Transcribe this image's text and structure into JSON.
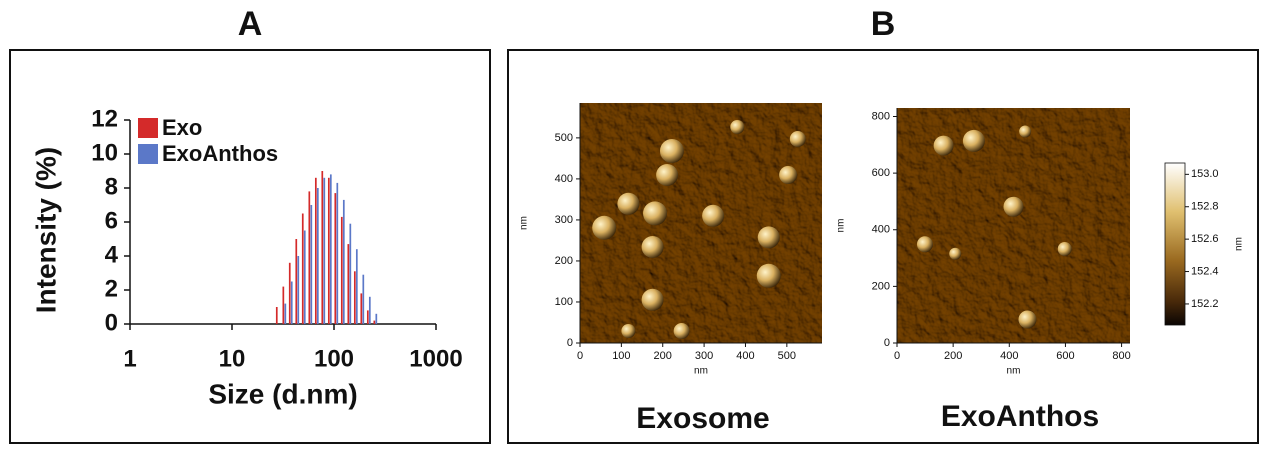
{
  "panels": [
    "A",
    "B"
  ],
  "chart_data": [
    {
      "type": "bar",
      "log_x": true,
      "x": [
        28.2,
        32.7,
        37.8,
        43.8,
        50.7,
        58.8,
        68.1,
        78.8,
        91.3,
        105.7,
        122.4,
        141.8,
        164.2,
        190.1,
        220.2,
        255.0
      ],
      "series": [
        {
          "name": "Exo",
          "color": "#d42a2a",
          "values": [
            1.0,
            2.2,
            3.6,
            5.0,
            6.5,
            7.8,
            8.6,
            9.0,
            8.6,
            7.7,
            6.3,
            4.7,
            3.1,
            1.8,
            0.8,
            0.2
          ]
        },
        {
          "name": "ExoAnthos",
          "color": "#5b78c8",
          "values": [
            0,
            1.2,
            2.5,
            4.0,
            5.5,
            7.0,
            8.0,
            8.6,
            8.8,
            8.3,
            7.3,
            5.9,
            4.4,
            2.9,
            1.6,
            0.6
          ]
        }
      ],
      "xlim": [
        1,
        1000
      ],
      "xticks": [
        1,
        10,
        100,
        1000
      ],
      "ylim": [
        0,
        12
      ],
      "yticks": [
        0,
        2,
        4,
        6,
        8,
        10,
        12
      ],
      "xlabel": "Size (d.nm)",
      "ylabel": "Intensity (%)",
      "legend": "top-left"
    },
    {
      "type": "image",
      "caption": "Exosome",
      "xlabel": "nm",
      "ylabel": "nm",
      "xlim": [
        0,
        585
      ],
      "xticks": [
        0,
        100,
        200,
        300,
        400,
        500
      ],
      "ylim": [
        0,
        585
      ],
      "yticks": [
        0,
        100,
        200,
        300,
        400,
        500
      ]
    },
    {
      "type": "image",
      "caption": "ExoAnthos",
      "xlabel": "nm",
      "ylabel": "nm",
      "xlim": [
        0,
        830
      ],
      "xticks": [
        0,
        200,
        400,
        600,
        800
      ],
      "ylim": [
        0,
        830
      ],
      "yticks": [
        0,
        200,
        400,
        600,
        800
      ],
      "colorbar": {
        "label": "nm",
        "lim": [
          152.07,
          153.07
        ],
        "ticks": [
          152.2,
          152.4,
          152.6,
          152.8,
          {
            "value": 153,
            "label": "153.0"
          }
        ]
      }
    }
  ]
}
